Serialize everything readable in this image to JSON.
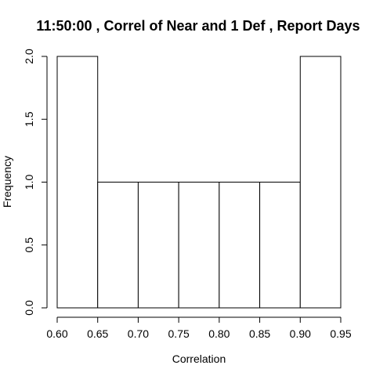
{
  "chart_data": {
    "type": "bar",
    "title": "11:50:00 , Correl of Near and 1 Def , Report Days",
    "xlabel": "Correlation",
    "ylabel": "Frequency",
    "bins": [
      {
        "from": 0.6,
        "to": 0.65,
        "count": 2
      },
      {
        "from": 0.65,
        "to": 0.7,
        "count": 1
      },
      {
        "from": 0.7,
        "to": 0.75,
        "count": 1
      },
      {
        "from": 0.75,
        "to": 0.8,
        "count": 1
      },
      {
        "from": 0.8,
        "to": 0.85,
        "count": 1
      },
      {
        "from": 0.85,
        "to": 0.9,
        "count": 1
      },
      {
        "from": 0.9,
        "to": 0.95,
        "count": 2
      }
    ],
    "xlim": [
      0.6,
      0.95
    ],
    "ylim": [
      0.0,
      2.0
    ],
    "xticks": [
      "0.60",
      "0.65",
      "0.70",
      "0.75",
      "0.80",
      "0.85",
      "0.90",
      "0.95"
    ],
    "yticks": [
      "0.0",
      "0.5",
      "1.0",
      "1.5",
      "2.0"
    ],
    "grid": false,
    "colors": {
      "bar_fill": "#ffffff",
      "bar_stroke": "#000000"
    }
  }
}
